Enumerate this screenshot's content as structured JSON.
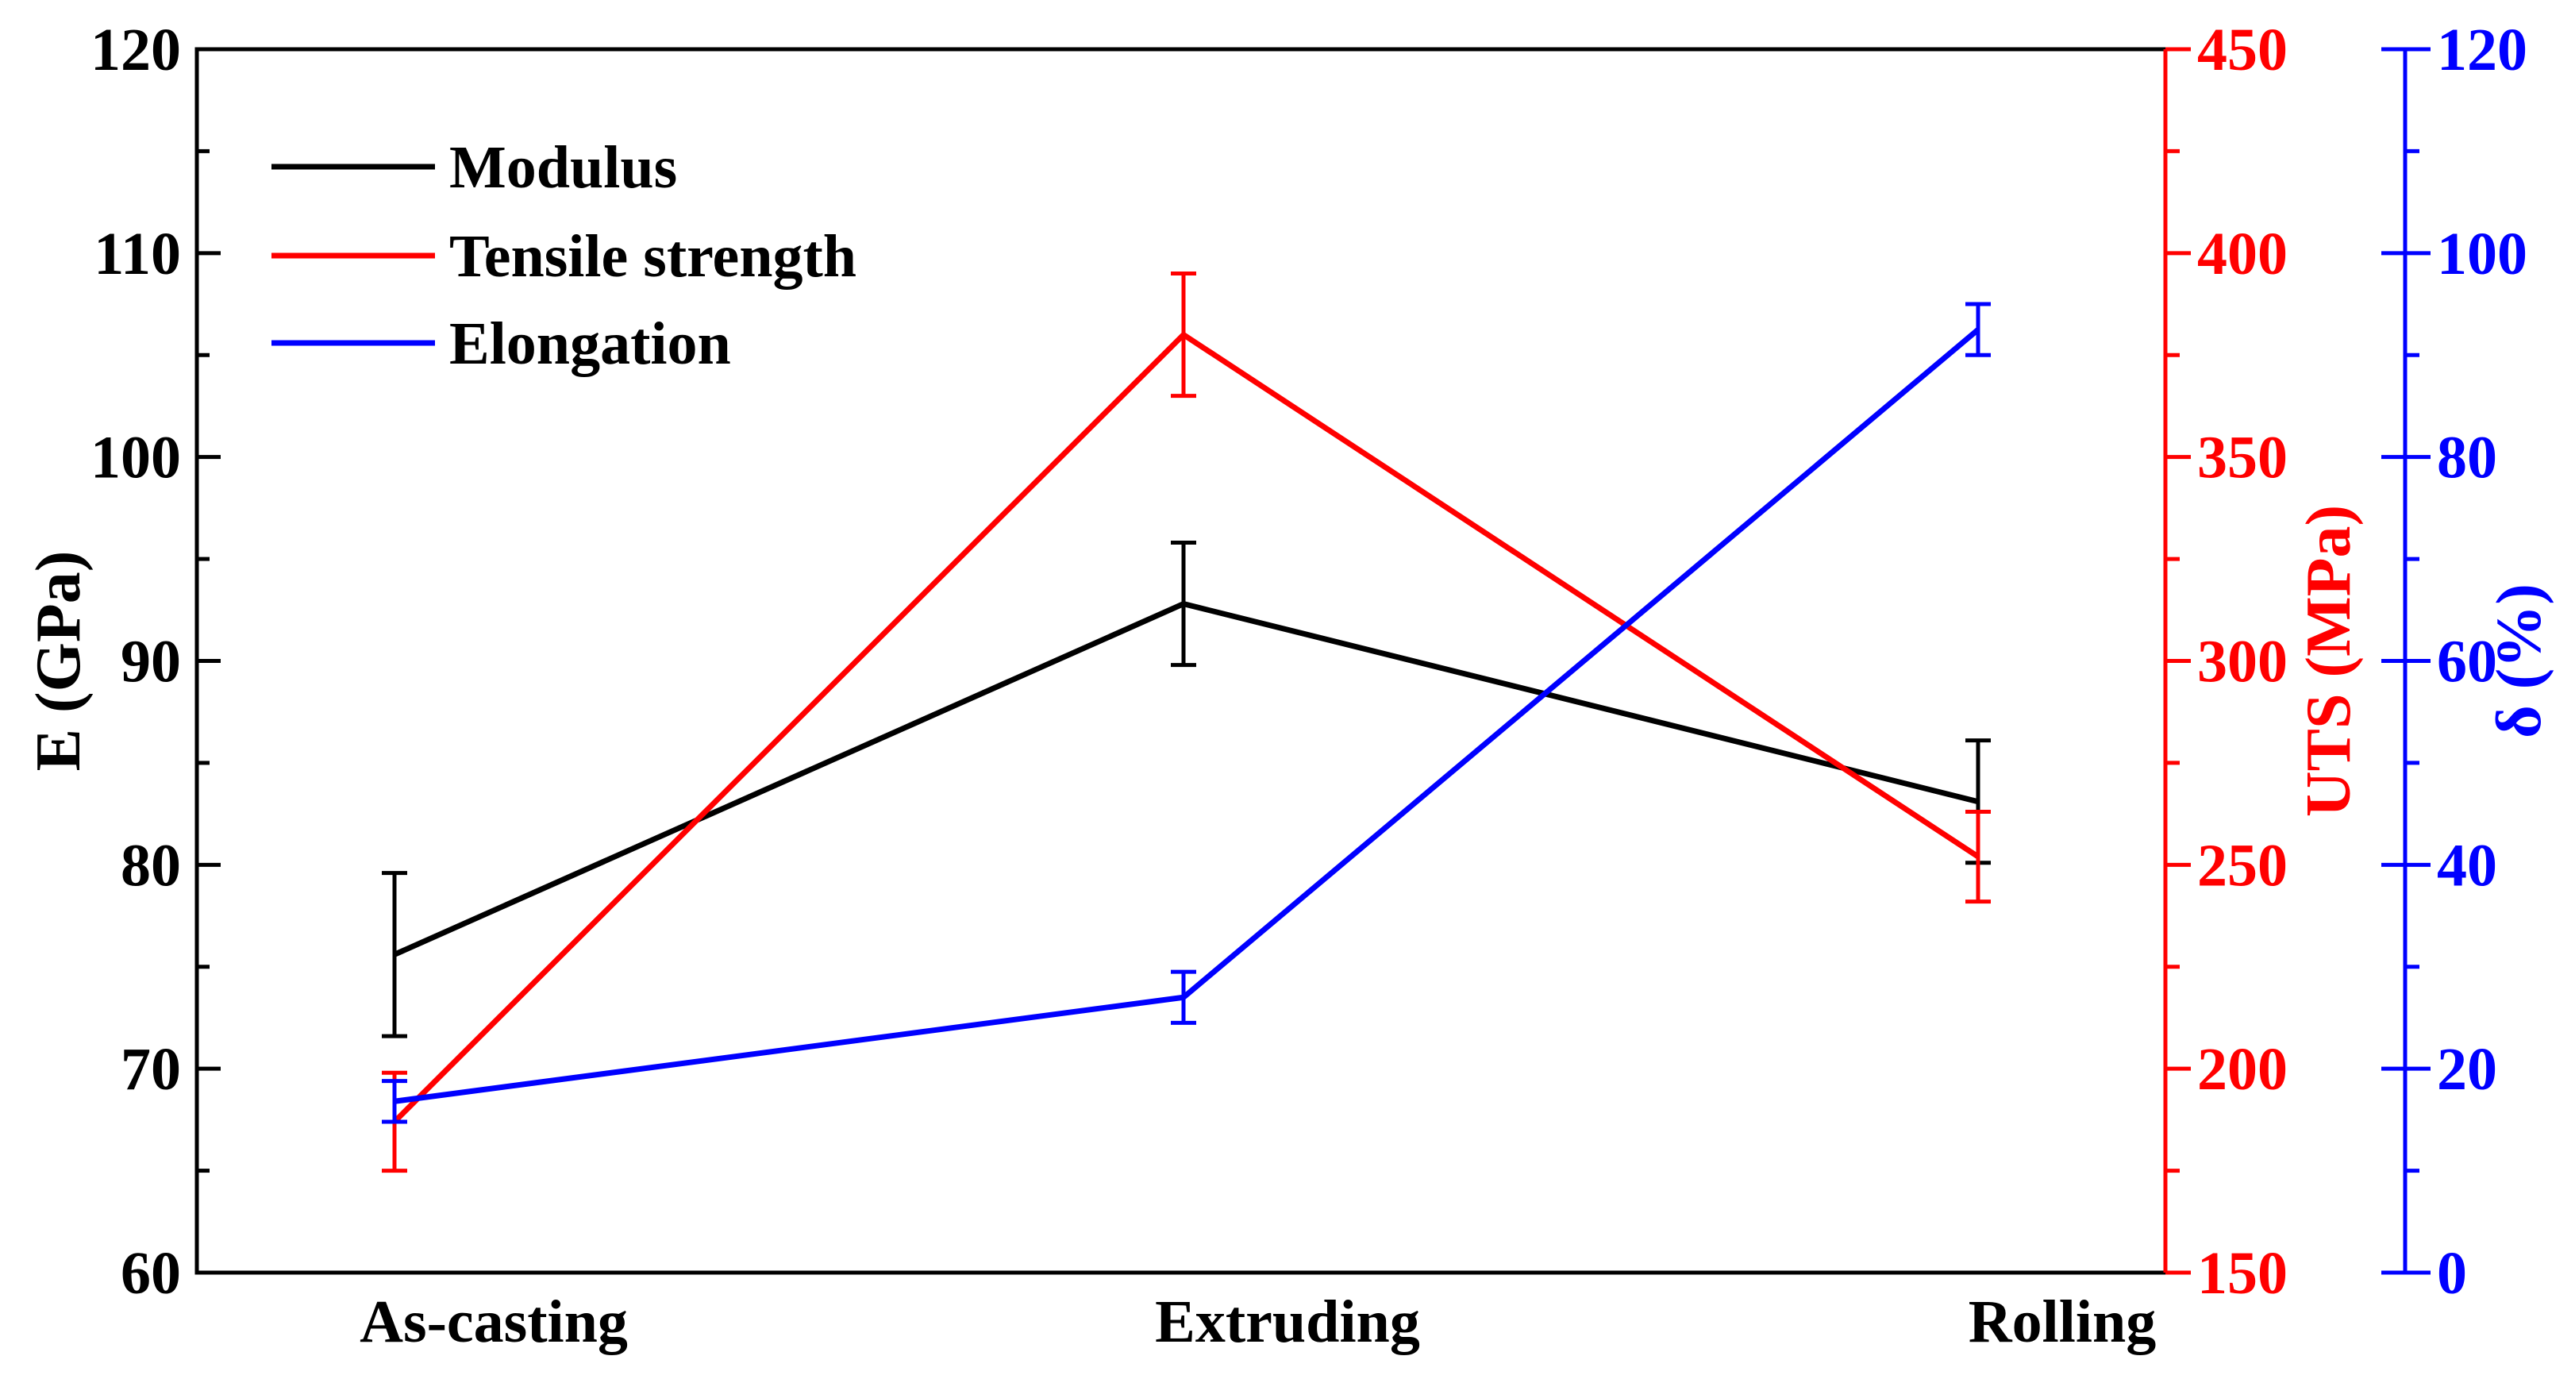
{
  "chart_data": {
    "type": "line",
    "title": "",
    "categories": [
      "As-casting",
      "Extruding",
      "Rolling"
    ],
    "xlabel": "",
    "legend_position": "top-left",
    "grid": false,
    "axes": {
      "left": {
        "label": "E (GPa)",
        "range": [
          60,
          120
        ],
        "ticks": [
          60,
          70,
          80,
          90,
          100,
          110,
          120
        ],
        "color": "#000000"
      },
      "right1": {
        "label": "UTS (MPa)",
        "range": [
          150,
          450
        ],
        "ticks": [
          150,
          200,
          250,
          300,
          350,
          400,
          450
        ],
        "color": "#ff0000"
      },
      "right2": {
        "label": "δ (%)",
        "range": [
          0,
          120
        ],
        "ticks": [
          0,
          20,
          40,
          60,
          80,
          100,
          120
        ],
        "color": "#0000ff"
      }
    },
    "series": [
      {
        "name": "Modulus",
        "axis": "left",
        "color": "#000000",
        "values": [
          75.6,
          92.8,
          83.1
        ],
        "errors": [
          4.0,
          3.0,
          3.0
        ]
      },
      {
        "name": "Tensile strength",
        "axis": "right1",
        "color": "#ff0000",
        "values": [
          187,
          380,
          252
        ],
        "errors": [
          12,
          15,
          11
        ]
      },
      {
        "name": "Elongation",
        "axis": "right2",
        "color": "#0000ff",
        "values": [
          16.8,
          27.0,
          92.5
        ],
        "errors": [
          2.0,
          2.5,
          2.5
        ]
      }
    ]
  }
}
